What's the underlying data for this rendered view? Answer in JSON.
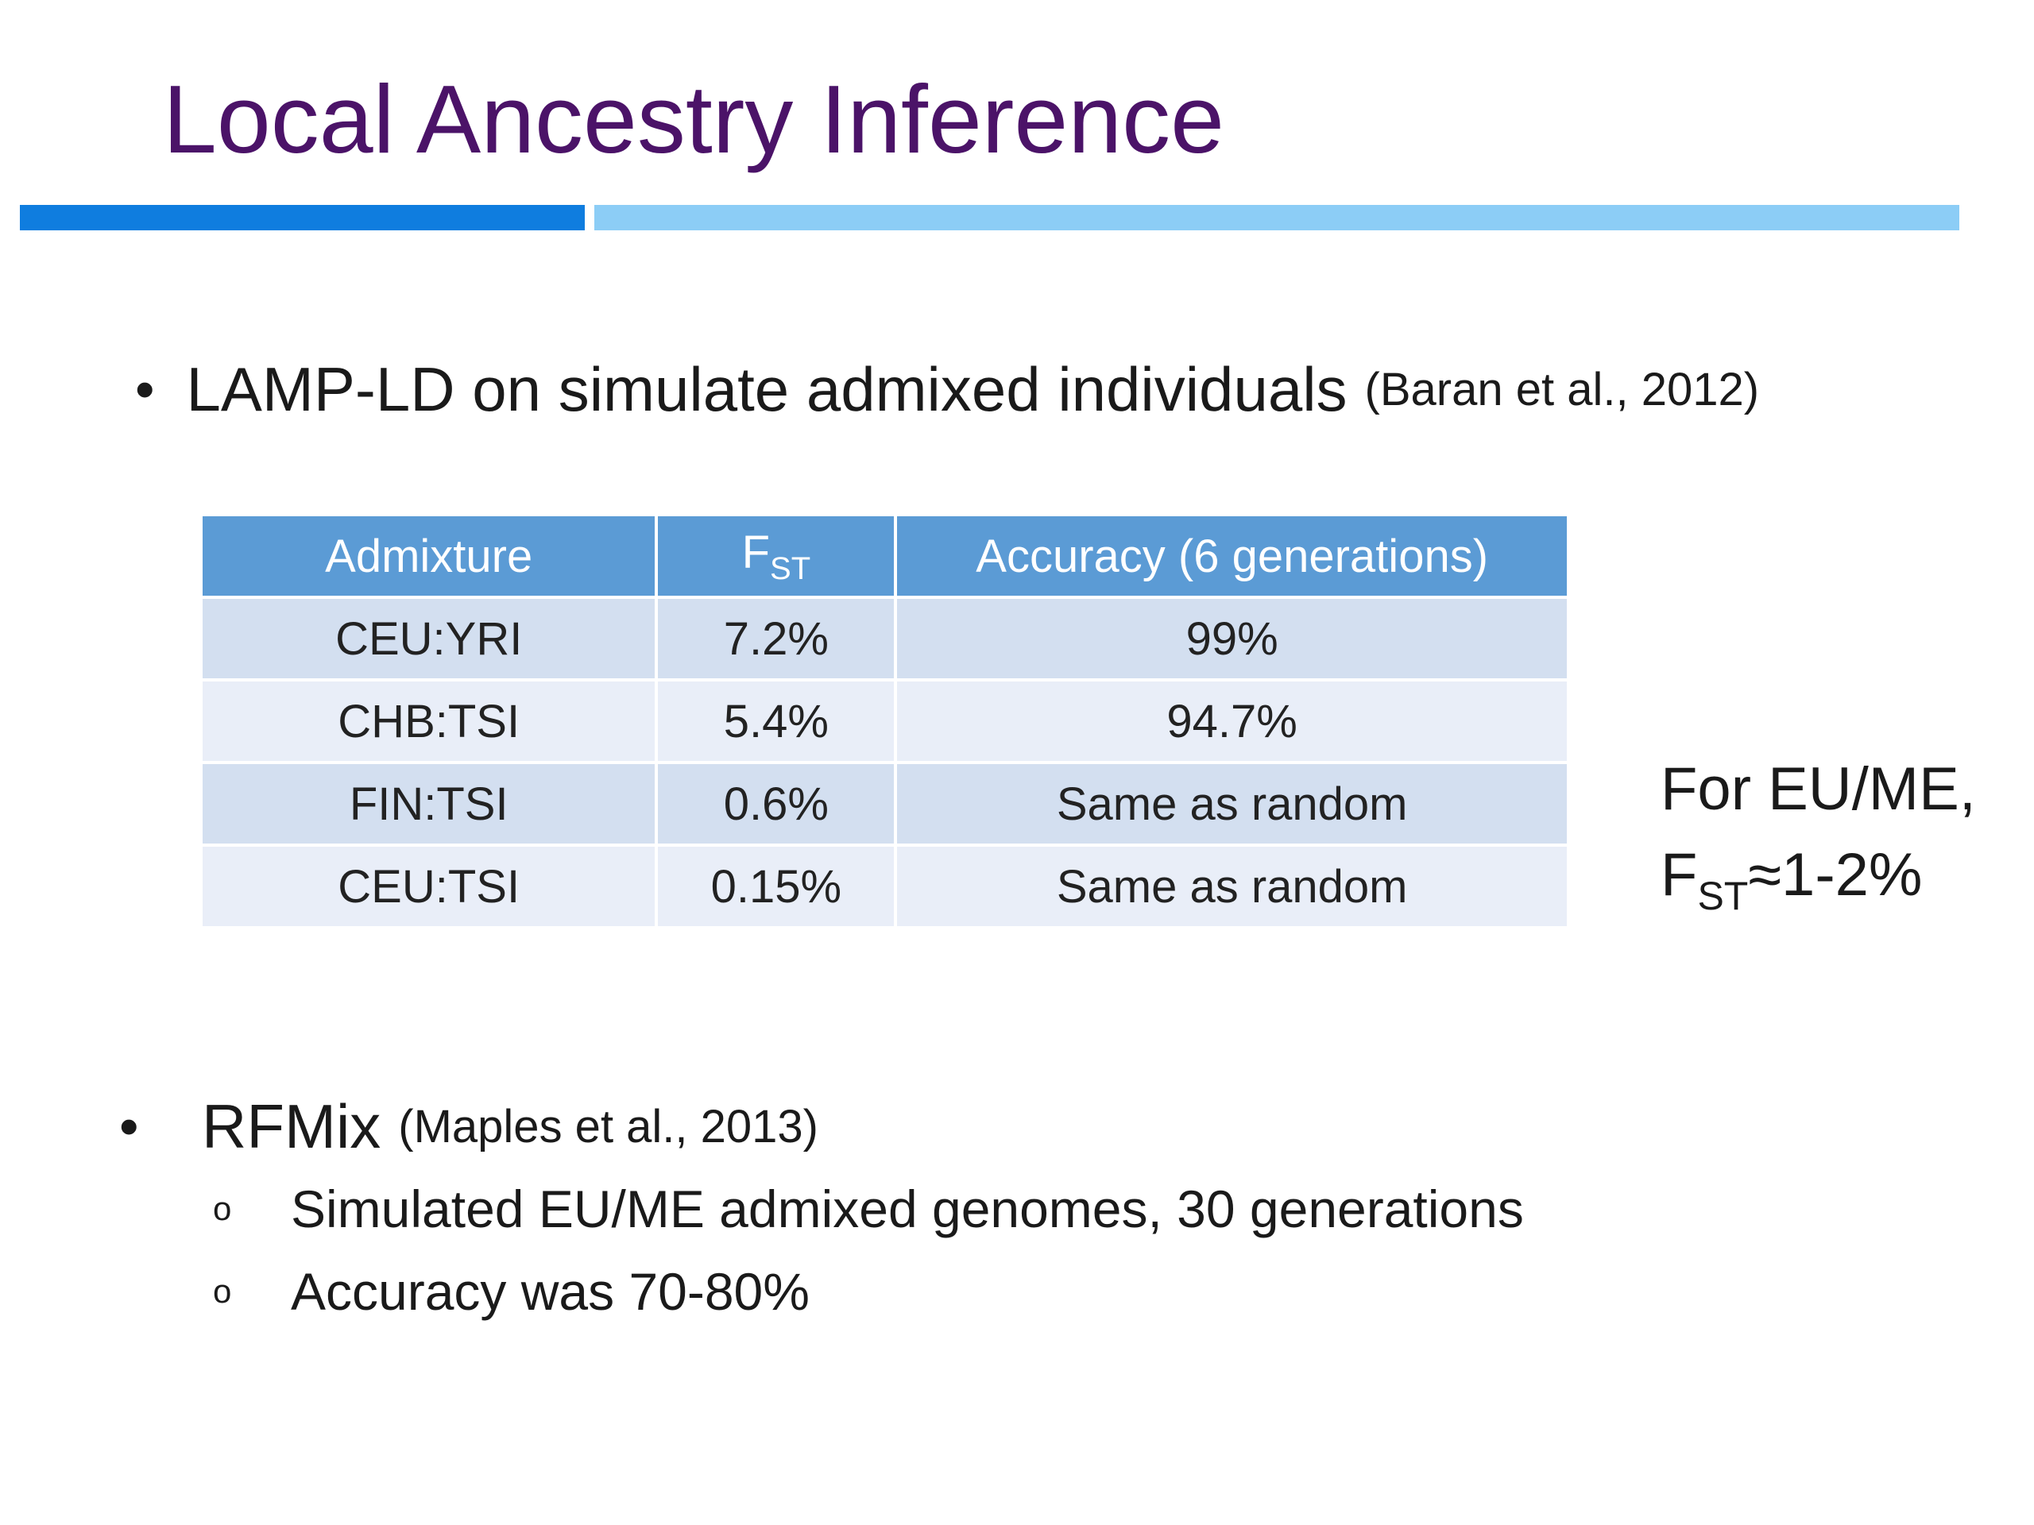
{
  "slide": {
    "title": "Local Ancestry Inference",
    "bullet1": {
      "text": "LAMP-LD on simulate admixed individuals",
      "citation": "(Baran et al., 2012)"
    },
    "table": {
      "headers": {
        "admixture": "Admixture",
        "fst_main": "F",
        "fst_sub": "ST",
        "accuracy": "Accuracy (6 generations)"
      },
      "rows": [
        {
          "admixture": "CEU:YRI",
          "fst": "7.2%",
          "accuracy": "99%"
        },
        {
          "admixture": "CHB:TSI",
          "fst": "5.4%",
          "accuracy": "94.7%"
        },
        {
          "admixture": "FIN:TSI",
          "fst": "0.6%",
          "accuracy": "Same as random"
        },
        {
          "admixture": "CEU:TSI",
          "fst": "0.15%",
          "accuracy": "Same as random"
        }
      ]
    },
    "side_note": {
      "line1": "For EU/ME,",
      "f": "F",
      "sub": "ST",
      "rest": "≈1-2%"
    },
    "bullet2": {
      "text": "RFMix",
      "citation": "(Maples et al., 2013)",
      "sub_items": [
        "Simulated EU/ME admixed genomes, 30 generations",
        "Accuracy was 70-80%"
      ]
    },
    "colors": {
      "title": "#4b1368",
      "rule_dark": "#0f7ddf",
      "rule_light": "#8ccdf6",
      "table_header": "#5b9bd5",
      "row_odd": "#d3dff0",
      "row_even": "#e9eef8"
    }
  }
}
